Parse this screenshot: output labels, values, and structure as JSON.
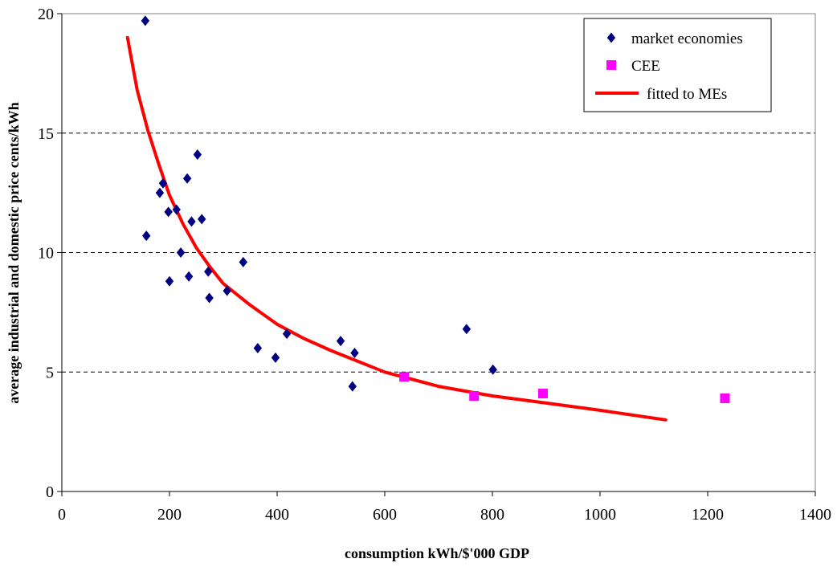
{
  "chart_data": {
    "type": "scatter",
    "xlabel": "consumption kWh/$'000 GDP",
    "ylabel": "average industrial and domestic price cents/kWh",
    "xlim": [
      0,
      1400
    ],
    "ylim": [
      0,
      20
    ],
    "xticks": [
      0,
      200,
      400,
      600,
      800,
      1000,
      1200,
      1400
    ],
    "yticks": [
      0,
      5,
      10,
      15,
      20
    ],
    "grid": "horizontal dashed",
    "legend_position": "top-right",
    "series": [
      {
        "name": "market economies",
        "kind": "scatter",
        "marker": "diamond",
        "color": "#000080",
        "points": [
          [
            155,
            19.7
          ],
          [
            157,
            10.7
          ],
          [
            182,
            12.5
          ],
          [
            188,
            12.9
          ],
          [
            198,
            11.7
          ],
          [
            200,
            8.8
          ],
          [
            213,
            11.8
          ],
          [
            221,
            10.0
          ],
          [
            233,
            13.1
          ],
          [
            236,
            9.0
          ],
          [
            241,
            11.3
          ],
          [
            252,
            14.1
          ],
          [
            260,
            11.4
          ],
          [
            272,
            9.2
          ],
          [
            274,
            8.1
          ],
          [
            307,
            8.4
          ],
          [
            337,
            9.6
          ],
          [
            364,
            6.0
          ],
          [
            397,
            5.6
          ],
          [
            418,
            6.6
          ],
          [
            518,
            6.3
          ],
          [
            540,
            4.4
          ],
          [
            544,
            5.8
          ],
          [
            752,
            6.8
          ],
          [
            801,
            5.1
          ]
        ]
      },
      {
        "name": "CEE",
        "kind": "scatter",
        "marker": "square",
        "color": "#FF00FF",
        "points": [
          [
            636,
            4.8
          ],
          [
            766,
            4.0
          ],
          [
            894,
            4.1
          ],
          [
            1232,
            3.9
          ]
        ]
      },
      {
        "name": "fitted to MEs",
        "kind": "line",
        "color": "#FF0000",
        "points": [
          [
            122,
            19.0
          ],
          [
            140,
            16.8
          ],
          [
            160,
            15.1
          ],
          [
            180,
            13.7
          ],
          [
            200,
            12.4
          ],
          [
            225,
            11.2
          ],
          [
            250,
            10.2
          ],
          [
            275,
            9.4
          ],
          [
            300,
            8.7
          ],
          [
            350,
            7.8
          ],
          [
            400,
            7.0
          ],
          [
            450,
            6.4
          ],
          [
            500,
            5.9
          ],
          [
            600,
            5.0
          ],
          [
            700,
            4.4
          ],
          [
            800,
            4.0
          ],
          [
            900,
            3.7
          ],
          [
            1000,
            3.4
          ],
          [
            1122,
            3.0
          ]
        ]
      }
    ]
  }
}
